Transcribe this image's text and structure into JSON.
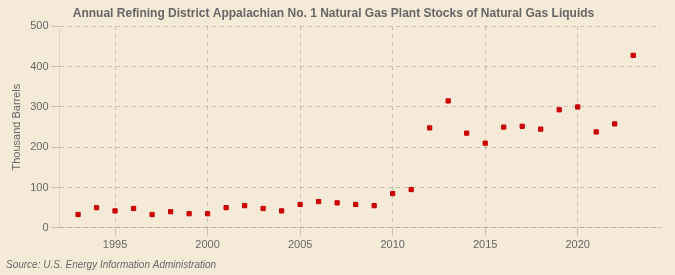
{
  "chart_data": {
    "type": "scatter",
    "title": "Annual Refining District Appalachian No. 1 Natural Gas Plant Stocks of Natural Gas Liquids",
    "ylabel": "Thousand Barrels",
    "annotations": [
      "Source: U.S. Energy Information Administration"
    ],
    "x": [
      1993,
      1994,
      1995,
      1996,
      1997,
      1998,
      1999,
      2000,
      2001,
      2002,
      2003,
      2004,
      2005,
      2006,
      2007,
      2008,
      2009,
      2010,
      2011,
      2012,
      2013,
      2014,
      2015,
      2016,
      2017,
      2018,
      2019,
      2020,
      2021,
      2022,
      2023
    ],
    "values": [
      33,
      50,
      42,
      48,
      33,
      40,
      35,
      35,
      50,
      55,
      48,
      42,
      58,
      65,
      62,
      58,
      55,
      85,
      95,
      248,
      315,
      235,
      210,
      250,
      252,
      245,
      293,
      300,
      238,
      258,
      428
    ],
    "color": "#cc0000",
    "marker": "square",
    "xlim": [
      1992,
      2024.5
    ],
    "ylim": [
      0,
      500
    ],
    "xticks": [
      1995,
      2000,
      2005,
      2010,
      2015,
      2020
    ],
    "yticks": [
      0,
      100,
      200,
      300,
      400,
      500
    ],
    "grid": true
  }
}
